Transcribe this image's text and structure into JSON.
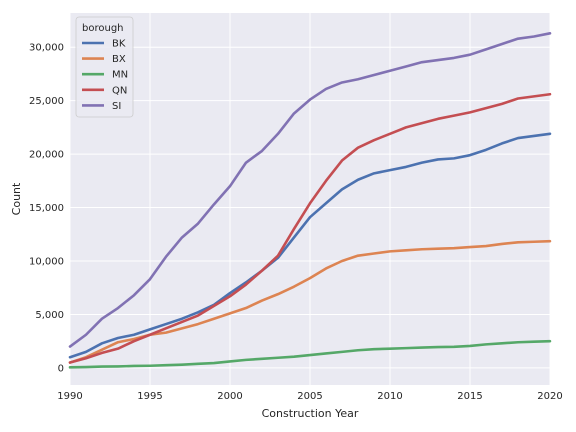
{
  "chart_data": {
    "type": "line",
    "xlabel": "Construction Year",
    "ylabel": "Count",
    "xlim": [
      1990,
      2020
    ],
    "ylim": [
      -1600,
      33200
    ],
    "x_ticks": [
      1990,
      1995,
      2000,
      2005,
      2010,
      2015,
      2020
    ],
    "y_ticks": [
      0,
      5000,
      10000,
      15000,
      20000,
      25000,
      30000
    ],
    "x_tick_labels": [
      "1990",
      "1995",
      "2000",
      "2005",
      "2010",
      "2015",
      "2020"
    ],
    "y_tick_labels": [
      "0",
      "5,000",
      "10,000",
      "15,000",
      "20,000",
      "25,000",
      "30,000"
    ],
    "grid": true,
    "background": "#eaeaf2",
    "legend": {
      "title": "borough",
      "placement": "top-left"
    },
    "x": [
      1990,
      1991,
      1992,
      1993,
      1994,
      1995,
      1996,
      1997,
      1998,
      1999,
      2000,
      2001,
      2002,
      2003,
      2004,
      2005,
      2006,
      2007,
      2008,
      2009,
      2010,
      2011,
      2012,
      2013,
      2014,
      2015,
      2016,
      2017,
      2018,
      2019,
      2020
    ],
    "series": [
      {
        "name": "BK",
        "color": "#4c72b0",
        "values": [
          1000,
          1500,
          2300,
          2800,
          3100,
          3600,
          4100,
          4600,
          5200,
          5900,
          7000,
          8000,
          9100,
          10300,
          12200,
          14100,
          15400,
          16700,
          17600,
          18200,
          18500,
          18800,
          19200,
          19500,
          19600,
          19900,
          20400,
          21000,
          21500,
          21700,
          21900
        ]
      },
      {
        "name": "BX",
        "color": "#dd8452",
        "values": [
          500,
          1000,
          1700,
          2400,
          2700,
          3100,
          3300,
          3700,
          4100,
          4600,
          5100,
          5600,
          6300,
          6900,
          7600,
          8400,
          9300,
          10000,
          10500,
          10700,
          10900,
          11000,
          11100,
          11150,
          11200,
          11300,
          11400,
          11600,
          11750,
          11800,
          11850
        ]
      },
      {
        "name": "MN",
        "color": "#55a868",
        "values": [
          50,
          80,
          120,
          140,
          180,
          200,
          250,
          300,
          380,
          450,
          600,
          750,
          850,
          950,
          1050,
          1200,
          1350,
          1500,
          1650,
          1750,
          1800,
          1850,
          1900,
          1950,
          1970,
          2050,
          2200,
          2300,
          2400,
          2450,
          2500
        ]
      },
      {
        "name": "QN",
        "color": "#c44e52",
        "values": [
          500,
          900,
          1400,
          1800,
          2500,
          3100,
          3700,
          4300,
          4900,
          5800,
          6700,
          7800,
          9100,
          10500,
          13000,
          15400,
          17500,
          19400,
          20600,
          21300,
          21900,
          22500,
          22900,
          23300,
          23600,
          23900,
          24300,
          24700,
          25200,
          25400,
          25600
        ]
      },
      {
        "name": "SI",
        "color": "#8172b3",
        "values": [
          2000,
          3100,
          4600,
          5600,
          6800,
          8300,
          10400,
          12200,
          13500,
          15300,
          17000,
          19200,
          20300,
          21900,
          23800,
          25100,
          26100,
          26700,
          27000,
          27400,
          27800,
          28200,
          28600,
          28800,
          29000,
          29300,
          29800,
          30300,
          30800,
          31000,
          31300
        ]
      }
    ]
  }
}
